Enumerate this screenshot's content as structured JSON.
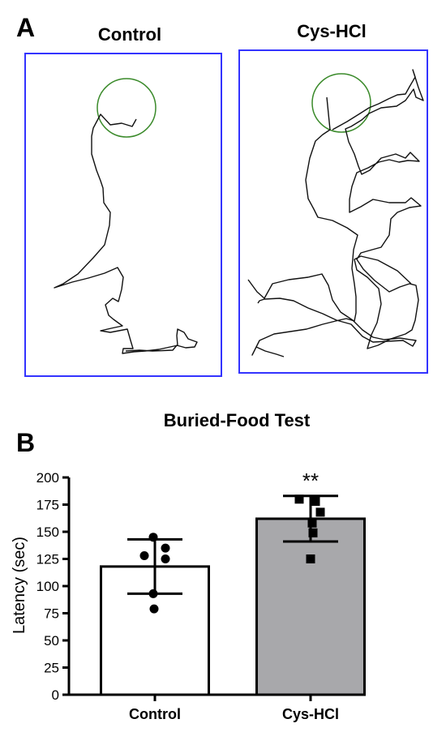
{
  "panel_a": {
    "label": "A",
    "arenas": [
      {
        "title": "Control",
        "border_color": "#3333ff",
        "target_color": "#3a8a2a",
        "path_color": "#111111"
      },
      {
        "title": "Cys-HCl",
        "border_color": "#3333ff",
        "target_color": "#3a8a2a",
        "path_color": "#111111"
      }
    ]
  },
  "panel_b": {
    "label": "B",
    "title": "Buried-Food Test"
  },
  "chart_data": {
    "type": "bar",
    "title": "Buried-Food Test",
    "xlabel": "",
    "ylabel": "Latency (sec)",
    "ylim": [
      0,
      200
    ],
    "yticks": [
      0,
      25,
      50,
      75,
      100,
      125,
      150,
      175,
      200
    ],
    "ytick_labels": [
      "0",
      "25",
      "50",
      "75",
      "100",
      "125",
      "150",
      "175",
      "200"
    ],
    "categories": [
      "Control",
      "Cys-HCl"
    ],
    "values": [
      118,
      162
    ],
    "error": [
      25,
      21
    ],
    "bar_colors": [
      "#ffffff",
      "#a8a8ab"
    ],
    "points": [
      [
        145,
        135,
        128,
        125,
        93,
        79
      ],
      [
        180,
        178,
        168,
        158,
        149,
        125
      ]
    ],
    "point_shapes": [
      "circle",
      "square"
    ],
    "annotations": [
      {
        "category": "Cys-HCl",
        "text": "**"
      }
    ]
  }
}
